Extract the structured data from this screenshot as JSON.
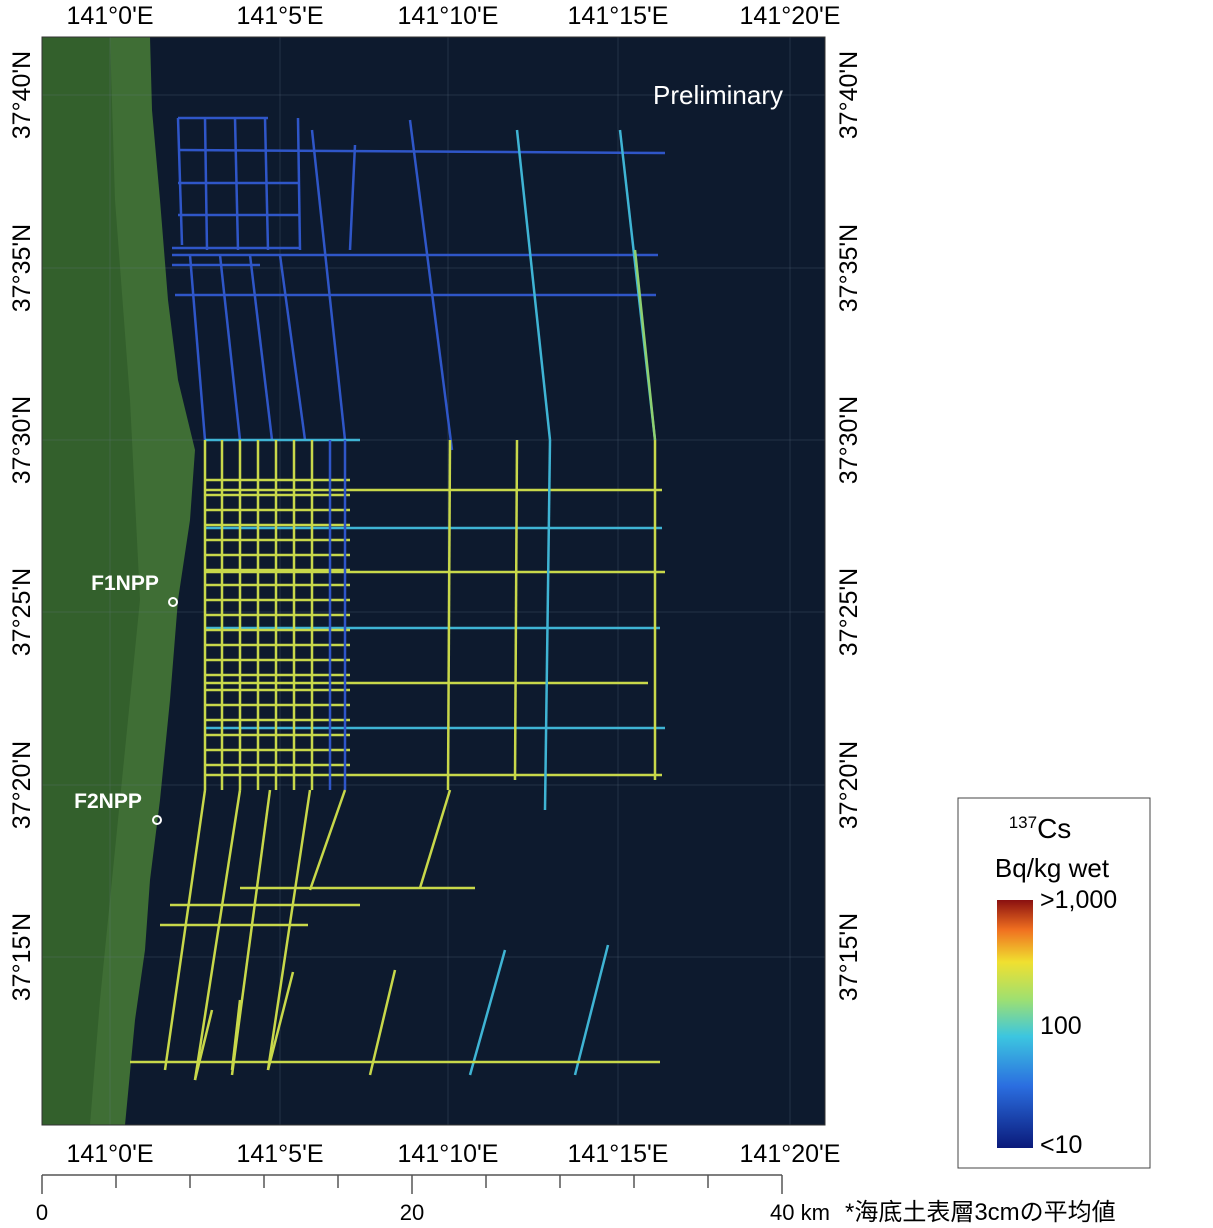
{
  "map": {
    "lon_labels": [
      "141°0'E",
      "141°5'E",
      "141°10'E",
      "141°15'E",
      "141°20'E"
    ],
    "lat_labels": [
      "37°40'N",
      "37°35'N",
      "37°30'N",
      "37°25'N",
      "37°20'N",
      "37°15'N"
    ],
    "watermark": "Preliminary",
    "sites": [
      "F1NPP",
      "F2NPP"
    ]
  },
  "legend": {
    "isotope_mass": "137",
    "isotope": "Cs",
    "unit": "Bq/kg wet",
    "max_label": ">1,000",
    "mid_label": "100",
    "min_label": "<10"
  },
  "scale_bar": {
    "labels": [
      "0",
      "20",
      "40 km"
    ],
    "note": "*海底土表層3cmの平均値"
  }
}
